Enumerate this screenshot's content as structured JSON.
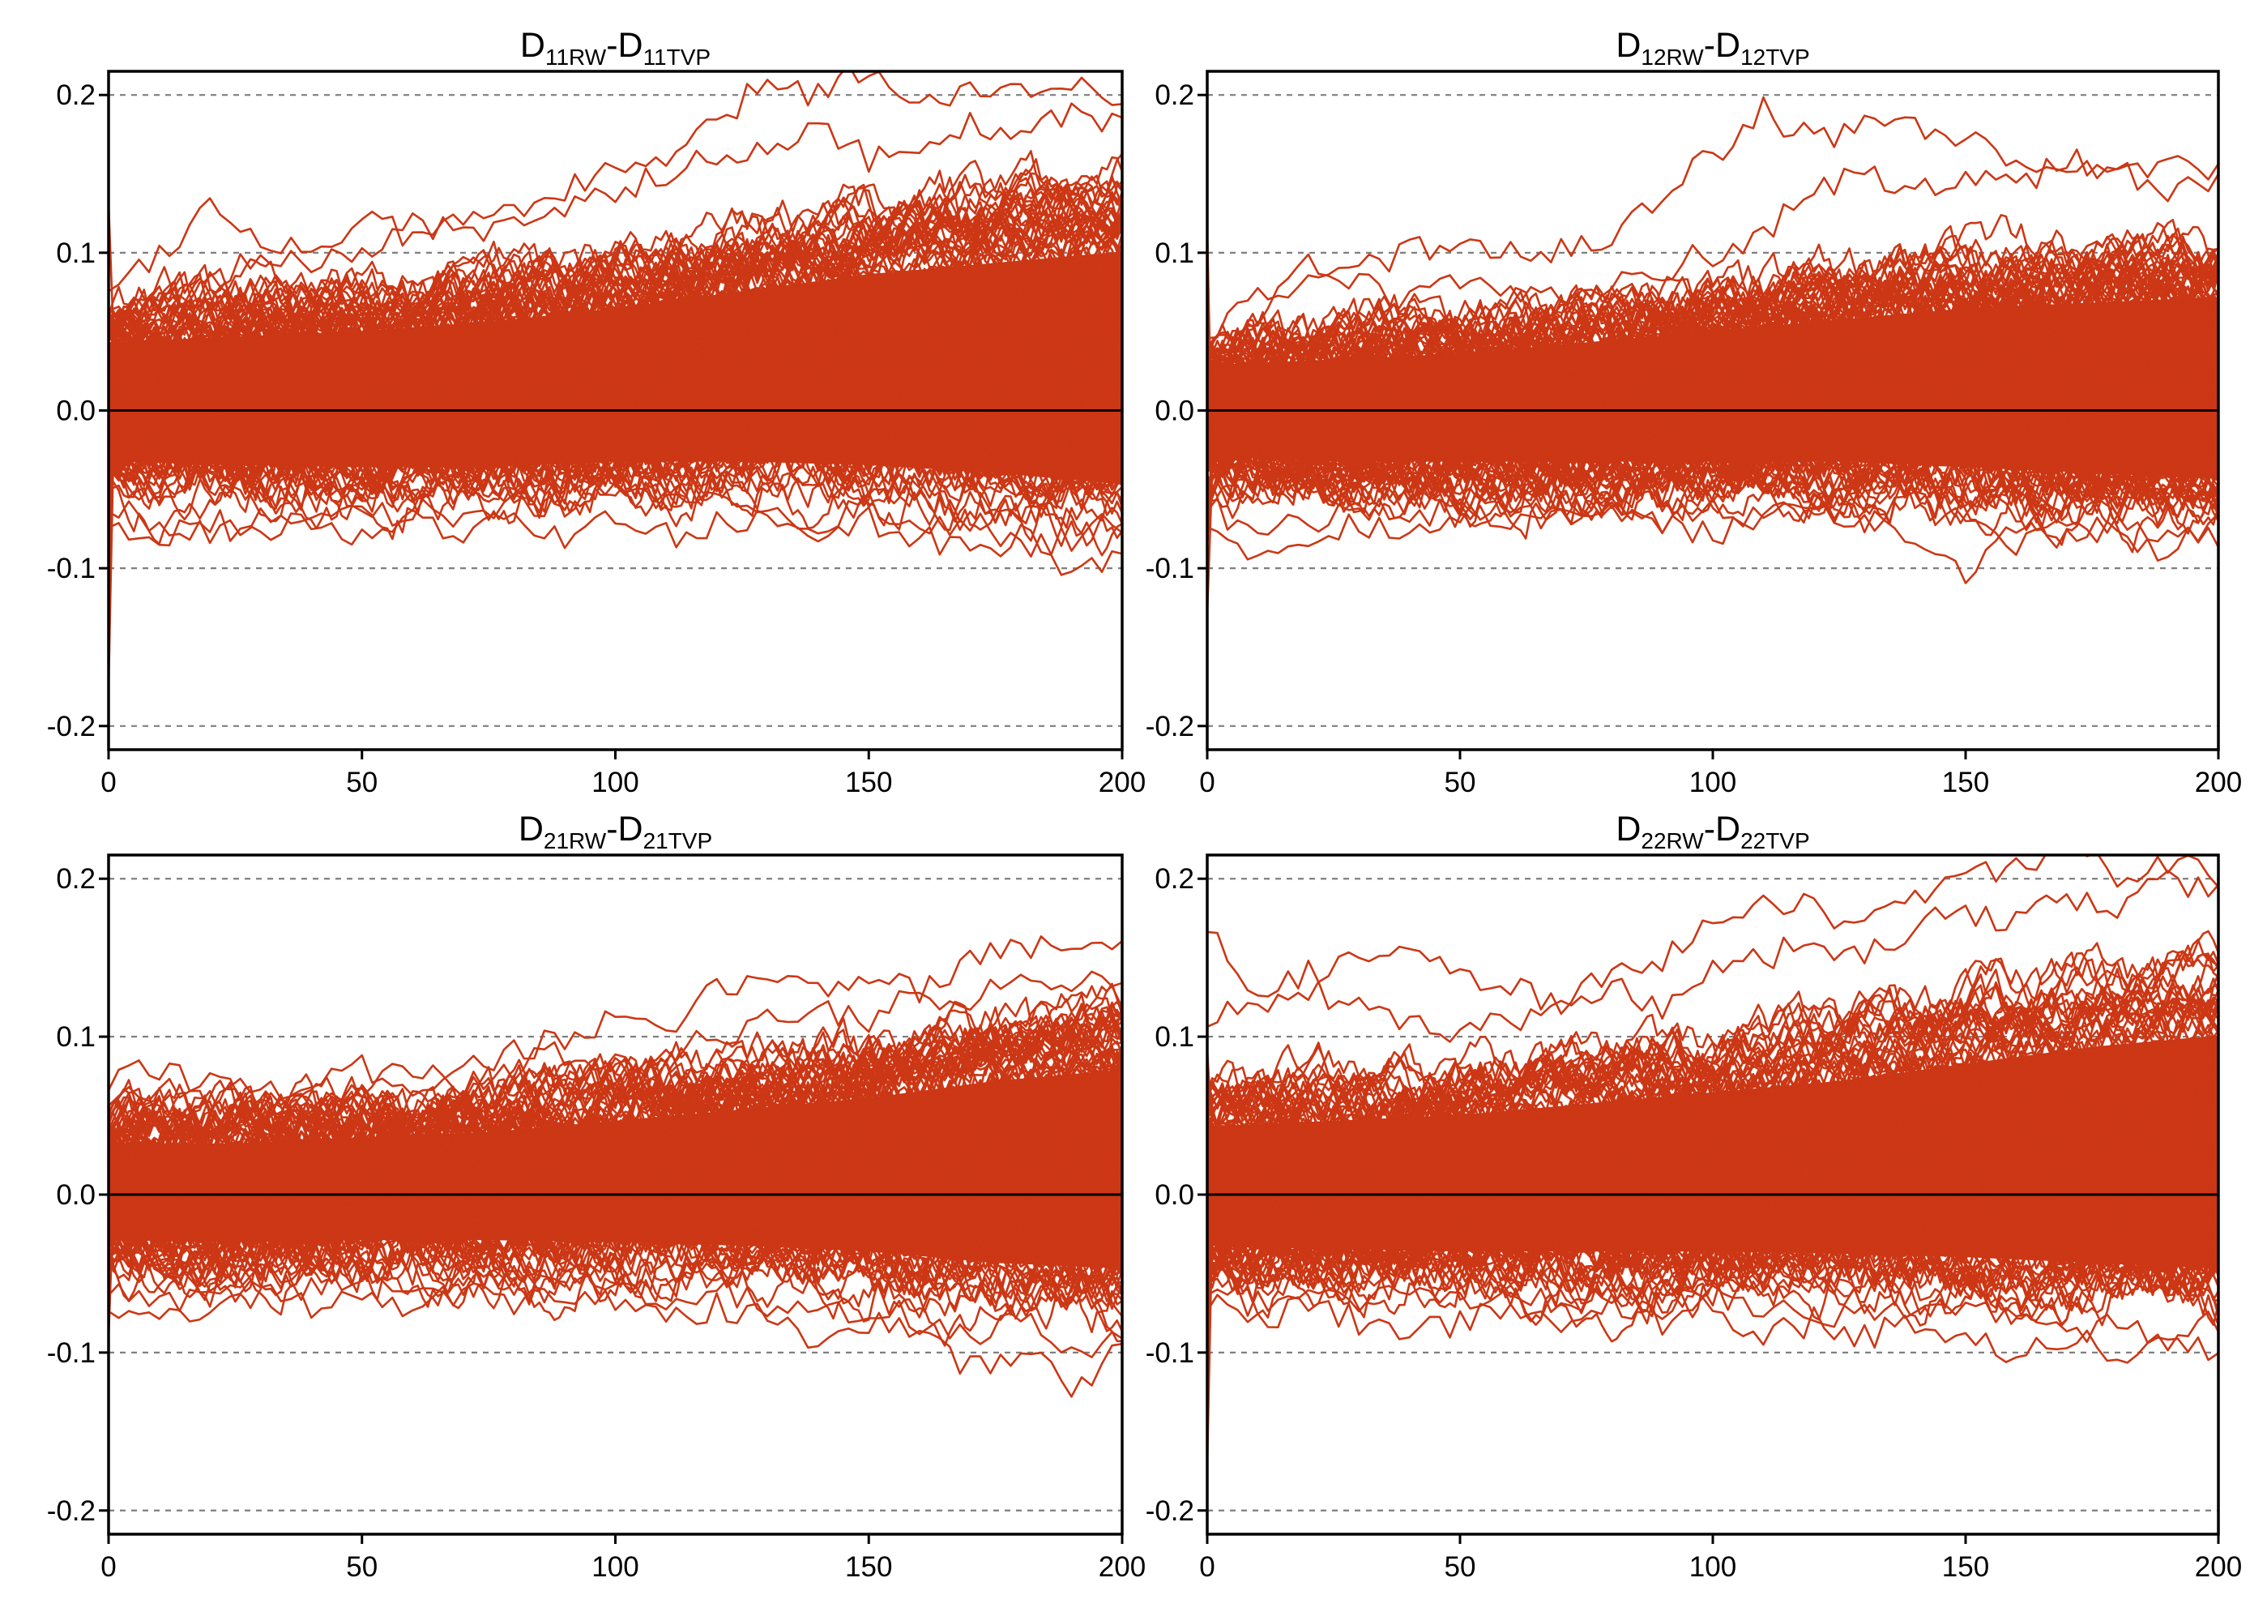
{
  "colors": {
    "series": "#cc3715",
    "band": "#cc3715",
    "grid": "#7f7f7f",
    "axis": "#000000"
  },
  "chart_data": [
    {
      "type": "line",
      "title": "D11RW-D11TVP",
      "title_parts": {
        "a": "D",
        "a_sub": "11RW",
        "sep": "-D",
        "b_sub": "11TVP"
      },
      "xlim": [
        0,
        200
      ],
      "ylim": [
        -0.215,
        0.215
      ],
      "xticks": [
        0,
        50,
        100,
        150,
        200
      ],
      "yticks": [
        -0.2,
        -0.1,
        0.0,
        0.1,
        0.2
      ],
      "xtick_labels": [
        "0",
        "50",
        "100",
        "150",
        "200"
      ],
      "ytick_labels": [
        "-0.2",
        "-0.1",
        "0.0",
        "0.1",
        "0.2"
      ],
      "dashed_gridlines": [
        -0.2,
        -0.1,
        0.1,
        0.2
      ],
      "zero_line": 0.0,
      "envelope": {
        "x": [
          0,
          25,
          50,
          75,
          100,
          125,
          150,
          175,
          200
        ],
        "upper": [
          0.06,
          0.065,
          0.07,
          0.078,
          0.09,
          0.105,
          0.12,
          0.13,
          0.14
        ],
        "lower": [
          -0.045,
          -0.048,
          -0.05,
          -0.05,
          -0.045,
          -0.045,
          -0.048,
          -0.055,
          -0.065
        ]
      },
      "sample_paths": [
        {
          "x": [
            0,
            10,
            20,
            30,
            40,
            50,
            60,
            70,
            80,
            90,
            100,
            110,
            120,
            130,
            140,
            150,
            160,
            170,
            180,
            190,
            200
          ],
          "y": [
            0.08,
            0.1,
            0.13,
            0.11,
            0.1,
            0.12,
            0.11,
            0.12,
            0.13,
            0.14,
            0.15,
            0.16,
            0.18,
            0.21,
            0.2,
            0.22,
            0.19,
            0.21,
            0.2,
            0.21,
            0.2
          ]
        },
        {
          "x": [
            0,
            10,
            20,
            30,
            40,
            50,
            60,
            70,
            80,
            90,
            100,
            110,
            120,
            130,
            140,
            150,
            160,
            170,
            180,
            190,
            200
          ],
          "y": [
            0.05,
            0.07,
            0.08,
            0.1,
            0.09,
            0.1,
            0.12,
            0.11,
            0.12,
            0.13,
            0.14,
            0.15,
            0.16,
            0.17,
            0.18,
            0.16,
            0.17,
            0.18,
            0.17,
            0.19,
            0.18
          ]
        },
        {
          "x": [
            0,
            10,
            20,
            30,
            40,
            50,
            60,
            70,
            80,
            90,
            100,
            110,
            120,
            130,
            140,
            150,
            160,
            170,
            180,
            190,
            200
          ],
          "y": [
            -0.07,
            -0.08,
            -0.07,
            -0.08,
            -0.07,
            -0.08,
            -0.07,
            -0.08,
            -0.07,
            -0.08,
            -0.07,
            -0.08,
            -0.07,
            -0.07,
            -0.08,
            -0.07,
            -0.08,
            -0.09,
            -0.08,
            -0.1,
            -0.09
          ]
        },
        {
          "x": [
            0,
            10,
            20,
            30,
            40,
            50,
            60,
            70,
            80,
            90,
            100,
            110,
            120,
            130,
            140,
            150,
            160,
            170,
            180,
            190,
            200
          ],
          "y": [
            -0.06,
            -0.07,
            -0.08,
            -0.07,
            -0.06,
            -0.07,
            -0.06,
            -0.07,
            -0.06,
            -0.06,
            -0.05,
            -0.06,
            -0.05,
            -0.06,
            -0.07,
            -0.06,
            -0.08,
            -0.07,
            -0.09,
            -0.08,
            -0.07
          ]
        }
      ]
    },
    {
      "type": "line",
      "title": "D12RW-D12TVP",
      "title_parts": {
        "a": "D",
        "a_sub": "12RW",
        "sep": "-D",
        "b_sub": "12TVP"
      },
      "xlim": [
        0,
        200
      ],
      "ylim": [
        -0.215,
        0.215
      ],
      "xticks": [
        0,
        50,
        100,
        150,
        200
      ],
      "yticks": [
        -0.2,
        -0.1,
        0.0,
        0.1,
        0.2
      ],
      "xtick_labels": [
        "0",
        "50",
        "100",
        "150",
        "200"
      ],
      "ytick_labels": [
        "-0.2",
        "-0.1",
        "0.0",
        "0.1",
        "0.2"
      ],
      "dashed_gridlines": [
        -0.2,
        -0.1,
        0.1,
        0.2
      ],
      "zero_line": 0.0,
      "envelope": {
        "x": [
          0,
          25,
          50,
          75,
          100,
          125,
          150,
          175,
          200
        ],
        "upper": [
          0.04,
          0.045,
          0.05,
          0.06,
          0.07,
          0.08,
          0.09,
          0.095,
          0.1
        ],
        "lower": [
          -0.04,
          -0.045,
          -0.045,
          -0.045,
          -0.045,
          -0.045,
          -0.05,
          -0.055,
          -0.06
        ]
      },
      "sample_paths": [
        {
          "x": [
            0,
            10,
            20,
            30,
            40,
            50,
            60,
            70,
            80,
            90,
            100,
            110,
            120,
            130,
            140,
            150,
            160,
            170,
            180,
            190,
            200
          ],
          "y": [
            0.05,
            0.07,
            0.08,
            0.09,
            0.1,
            0.11,
            0.1,
            0.1,
            0.11,
            0.14,
            0.16,
            0.19,
            0.17,
            0.18,
            0.18,
            0.17,
            0.16,
            0.15,
            0.15,
            0.16,
            0.15
          ]
        },
        {
          "x": [
            0,
            10,
            20,
            30,
            40,
            50,
            60,
            70,
            80,
            90,
            100,
            110,
            120,
            130,
            140,
            150,
            160,
            170,
            180,
            190,
            200
          ],
          "y": [
            0.04,
            0.06,
            0.09,
            0.08,
            0.07,
            0.08,
            0.07,
            0.07,
            0.08,
            0.09,
            0.1,
            0.11,
            0.14,
            0.15,
            0.14,
            0.15,
            0.14,
            0.16,
            0.15,
            0.14,
            0.15
          ]
        },
        {
          "x": [
            0,
            10,
            20,
            30,
            40,
            50,
            60,
            70,
            80,
            90,
            100,
            110,
            120,
            130,
            140,
            150,
            160,
            170,
            180,
            190,
            200
          ],
          "y": [
            -0.07,
            -0.09,
            -0.08,
            -0.07,
            -0.08,
            -0.07,
            -0.06,
            -0.07,
            -0.06,
            -0.07,
            -0.08,
            -0.07,
            -0.06,
            -0.07,
            -0.08,
            -0.11,
            -0.07,
            -0.08,
            -0.07,
            -0.08,
            -0.08
          ]
        },
        {
          "x": [
            0,
            10,
            20,
            30,
            40,
            50,
            60,
            70,
            80,
            90,
            100,
            110,
            120,
            130,
            140,
            150,
            160,
            170,
            180,
            190,
            200
          ],
          "y": [
            -0.06,
            -0.08,
            -0.07,
            -0.06,
            -0.07,
            -0.06,
            -0.07,
            -0.06,
            -0.06,
            -0.07,
            -0.06,
            -0.07,
            -0.06,
            -0.07,
            -0.06,
            -0.07,
            -0.09,
            -0.07,
            -0.08,
            -0.09,
            -0.07
          ]
        }
      ]
    },
    {
      "type": "line",
      "title": "D21RW-D21TVP",
      "title_parts": {
        "a": "D",
        "a_sub": "21RW",
        "sep": "-D",
        "b_sub": "21TVP"
      },
      "xlim": [
        0,
        200
      ],
      "ylim": [
        -0.215,
        0.215
      ],
      "xticks": [
        0,
        50,
        100,
        150,
        200
      ],
      "yticks": [
        -0.2,
        -0.1,
        0.0,
        0.1,
        0.2
      ],
      "xtick_labels": [
        "0",
        "50",
        "100",
        "150",
        "200"
      ],
      "ytick_labels": [
        "-0.2",
        "-0.1",
        "0.0",
        "0.1",
        "0.2"
      ],
      "dashed_gridlines": [
        -0.2,
        -0.1,
        0.1,
        0.2
      ],
      "zero_line": 0.0,
      "envelope": {
        "x": [
          0,
          25,
          50,
          75,
          100,
          125,
          150,
          175,
          200
        ],
        "upper": [
          0.045,
          0.045,
          0.05,
          0.055,
          0.065,
          0.075,
          0.085,
          0.1,
          0.11
        ],
        "lower": [
          -0.04,
          -0.042,
          -0.04,
          -0.04,
          -0.042,
          -0.045,
          -0.05,
          -0.06,
          -0.065
        ]
      },
      "sample_paths": [
        {
          "x": [
            0,
            10,
            20,
            30,
            40,
            50,
            60,
            70,
            80,
            90,
            100,
            110,
            120,
            130,
            140,
            150,
            160,
            170,
            180,
            190,
            200
          ],
          "y": [
            0.07,
            0.08,
            0.07,
            0.06,
            0.07,
            0.08,
            0.07,
            0.08,
            0.09,
            0.1,
            0.11,
            0.1,
            0.13,
            0.14,
            0.13,
            0.14,
            0.13,
            0.15,
            0.16,
            0.15,
            0.16
          ]
        },
        {
          "x": [
            0,
            10,
            20,
            30,
            40,
            50,
            60,
            70,
            80,
            90,
            100,
            110,
            120,
            130,
            140,
            150,
            160,
            170,
            180,
            190,
            200
          ],
          "y": [
            0.06,
            0.07,
            0.06,
            0.07,
            0.06,
            0.07,
            0.08,
            0.07,
            0.08,
            0.09,
            0.08,
            0.09,
            0.1,
            0.11,
            0.12,
            0.11,
            0.13,
            0.12,
            0.14,
            0.13,
            0.14
          ]
        },
        {
          "x": [
            0,
            10,
            20,
            30,
            40,
            50,
            60,
            70,
            80,
            90,
            100,
            110,
            120,
            130,
            140,
            150,
            160,
            170,
            180,
            190,
            200
          ],
          "y": [
            -0.07,
            -0.08,
            -0.07,
            -0.06,
            -0.07,
            -0.06,
            -0.07,
            -0.06,
            -0.07,
            -0.06,
            -0.07,
            -0.08,
            -0.07,
            -0.08,
            -0.09,
            -0.08,
            -0.09,
            -0.11,
            -0.1,
            -0.12,
            -0.1
          ]
        },
        {
          "x": [
            0,
            10,
            20,
            30,
            40,
            50,
            60,
            70,
            80,
            90,
            100,
            110,
            120,
            130,
            140,
            150,
            160,
            170,
            180,
            190,
            200
          ],
          "y": [
            -0.06,
            -0.07,
            -0.06,
            -0.05,
            -0.06,
            -0.05,
            -0.06,
            -0.05,
            -0.06,
            -0.05,
            -0.06,
            -0.07,
            -0.06,
            -0.07,
            -0.08,
            -0.07,
            -0.08,
            -0.09,
            -0.08,
            -0.1,
            -0.09
          ]
        }
      ]
    },
    {
      "type": "line",
      "title": "D22RW-D22TVP",
      "title_parts": {
        "a": "D",
        "a_sub": "22RW",
        "sep": "-D",
        "b_sub": "22TVP"
      },
      "xlim": [
        0,
        200
      ],
      "ylim": [
        -0.215,
        0.215
      ],
      "xticks": [
        0,
        50,
        100,
        150,
        200
      ],
      "yticks": [
        -0.2,
        -0.1,
        0.0,
        0.1,
        0.2
      ],
      "xtick_labels": [
        "0",
        "50",
        "100",
        "150",
        "200"
      ],
      "ytick_labels": [
        "-0.2",
        "-0.1",
        "0.0",
        "0.1",
        "0.2"
      ],
      "dashed_gridlines": [
        -0.2,
        -0.1,
        0.1,
        0.2
      ],
      "zero_line": 0.0,
      "envelope": {
        "x": [
          0,
          25,
          50,
          75,
          100,
          125,
          150,
          175,
          200
        ],
        "upper": [
          0.06,
          0.065,
          0.07,
          0.08,
          0.09,
          0.1,
          0.115,
          0.13,
          0.14
        ],
        "lower": [
          -0.045,
          -0.048,
          -0.05,
          -0.05,
          -0.05,
          -0.052,
          -0.055,
          -0.06,
          -0.065
        ]
      },
      "sample_paths": [
        {
          "x": [
            0,
            10,
            20,
            30,
            40,
            50,
            60,
            70,
            80,
            90,
            100,
            110,
            120,
            130,
            140,
            150,
            160,
            170,
            180,
            190,
            200
          ],
          "y": [
            0.17,
            0.13,
            0.14,
            0.15,
            0.15,
            0.14,
            0.13,
            0.12,
            0.14,
            0.15,
            0.17,
            0.19,
            0.18,
            0.17,
            0.19,
            0.2,
            0.21,
            0.22,
            0.2,
            0.21,
            0.2
          ]
        },
        {
          "x": [
            0,
            10,
            20,
            30,
            40,
            50,
            60,
            70,
            80,
            90,
            100,
            110,
            120,
            130,
            140,
            150,
            160,
            170,
            180,
            190,
            200
          ],
          "y": [
            0.11,
            0.12,
            0.13,
            0.12,
            0.11,
            0.1,
            0.11,
            0.12,
            0.13,
            0.12,
            0.14,
            0.15,
            0.16,
            0.15,
            0.17,
            0.18,
            0.17,
            0.19,
            0.18,
            0.2,
            0.19
          ]
        },
        {
          "x": [
            0,
            10,
            20,
            30,
            40,
            50,
            60,
            70,
            80,
            90,
            100,
            110,
            120,
            130,
            140,
            150,
            160,
            170,
            180,
            190,
            200
          ],
          "y": [
            -0.07,
            -0.08,
            -0.07,
            -0.08,
            -0.09,
            -0.08,
            -0.07,
            -0.08,
            -0.07,
            -0.08,
            -0.07,
            -0.09,
            -0.08,
            -0.09,
            -0.08,
            -0.09,
            -0.1,
            -0.09,
            -0.1,
            -0.09,
            -0.1
          ]
        },
        {
          "x": [
            0,
            10,
            20,
            30,
            40,
            50,
            60,
            70,
            80,
            90,
            100,
            110,
            120,
            130,
            140,
            150,
            160,
            170,
            180,
            190,
            200
          ],
          "y": [
            -0.06,
            -0.07,
            -0.06,
            -0.07,
            -0.06,
            -0.07,
            -0.06,
            -0.07,
            -0.06,
            -0.07,
            -0.06,
            -0.07,
            -0.08,
            -0.07,
            -0.08,
            -0.07,
            -0.08,
            -0.09,
            -0.08,
            -0.09,
            -0.08
          ]
        }
      ]
    }
  ]
}
